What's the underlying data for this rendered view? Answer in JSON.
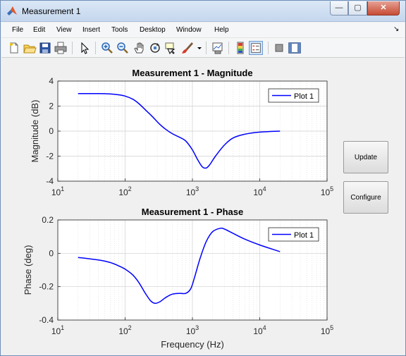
{
  "window": {
    "title": "Measurement 1",
    "controls": {
      "minimize": "—",
      "maximize": "▢",
      "close": "✕"
    }
  },
  "menu": {
    "items": [
      "File",
      "Edit",
      "View",
      "Insert",
      "Tools",
      "Desktop",
      "Window",
      "Help"
    ],
    "dock_glyph": "↘"
  },
  "toolbar": {
    "icons": [
      "new-figure-icon",
      "open-file-icon",
      "save-icon",
      "print-icon",
      "select-arrow-icon",
      "zoom-in-icon",
      "zoom-out-icon",
      "pan-hand-icon",
      "rotate-3d-icon",
      "data-cursor-icon",
      "brush-icon",
      "brush-dropdown-icon",
      "link-plot-icon",
      "insert-colorbar-icon",
      "insert-legend-icon",
      "hide-plot-tools-icon",
      "show-plot-tools-icon"
    ]
  },
  "buttons": {
    "update": "Update",
    "configure": "Configure"
  },
  "chart_data": [
    {
      "type": "line",
      "title": "Measurement 1 - Magnitude",
      "xlabel": "",
      "ylabel": "Magnitude (dB)",
      "xscale": "log",
      "xlim": [
        10,
        100000
      ],
      "ylim": [
        -4,
        4
      ],
      "xticks": [
        10,
        100,
        1000,
        10000,
        100000
      ],
      "yticks": [
        -4,
        -2,
        0,
        2,
        4
      ],
      "ytick_labels": [
        "-4",
        "-2",
        "0",
        "2",
        "4"
      ],
      "grid": true,
      "legend": "top-right",
      "series": [
        {
          "name": "Plot 1",
          "color": "#0000ff",
          "x": [
            20,
            40,
            60,
            80,
            100,
            130,
            160,
            200,
            250,
            320,
            400,
            500,
            650,
            800,
            1000,
            1200,
            1400,
            1600,
            1800,
            2200,
            3000,
            4000,
            6000,
            10000,
            20000
          ],
          "y": [
            3.0,
            3.0,
            2.97,
            2.9,
            2.8,
            2.55,
            2.2,
            1.7,
            1.2,
            0.6,
            0.15,
            -0.2,
            -0.5,
            -0.8,
            -1.5,
            -2.3,
            -2.85,
            -2.95,
            -2.7,
            -2.0,
            -1.1,
            -0.55,
            -0.25,
            -0.08,
            0.0
          ]
        }
      ]
    },
    {
      "type": "line",
      "title": "Measurement 1 - Phase",
      "xlabel": "Frequency (Hz)",
      "ylabel": "Phase (deg)",
      "xscale": "log",
      "xlim": [
        10,
        100000
      ],
      "ylim": [
        -0.4,
        0.2
      ],
      "xticks": [
        10,
        100,
        1000,
        10000,
        100000
      ],
      "yticks": [
        -0.4,
        -0.2,
        0,
        0.2
      ],
      "ytick_labels": [
        "-0.4",
        "-0.2",
        "0",
        "0.2"
      ],
      "grid": true,
      "legend": "top-right",
      "series": [
        {
          "name": "Plot 1",
          "color": "#0000ff",
          "x": [
            20,
            40,
            60,
            80,
            100,
            130,
            160,
            200,
            240,
            280,
            330,
            400,
            500,
            650,
            800,
            950,
            1100,
            1300,
            1600,
            2000,
            2600,
            3000,
            4000,
            6000,
            10000,
            20000
          ],
          "y": [
            -0.025,
            -0.04,
            -0.055,
            -0.075,
            -0.095,
            -0.13,
            -0.175,
            -0.24,
            -0.285,
            -0.3,
            -0.29,
            -0.265,
            -0.245,
            -0.24,
            -0.24,
            -0.21,
            -0.13,
            -0.03,
            0.07,
            0.13,
            0.15,
            0.145,
            0.12,
            0.085,
            0.05,
            0.01
          ]
        }
      ]
    }
  ]
}
